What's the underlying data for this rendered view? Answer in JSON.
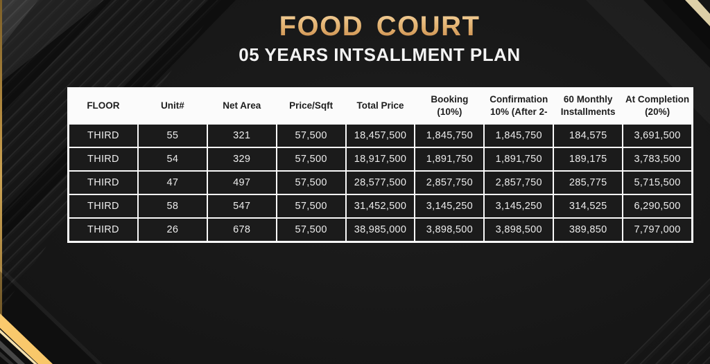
{
  "header": {
    "title": "FOOD COURT",
    "subtitle": "05 YEARS INTSALLMENT PLAN"
  },
  "table": {
    "headers": [
      {
        "lines": [
          "FLOOR"
        ]
      },
      {
        "lines": [
          "Unit#"
        ]
      },
      {
        "lines": [
          "Net Area"
        ]
      },
      {
        "lines": [
          "Price/Sqft"
        ]
      },
      {
        "lines": [
          "Total Price"
        ]
      },
      {
        "lines": [
          "Booking",
          "(10%)"
        ]
      },
      {
        "lines": [
          "Confirmation",
          "10% (After 2-"
        ]
      },
      {
        "lines": [
          "60 Monthly",
          "Installments"
        ]
      },
      {
        "lines": [
          "At Completion",
          "(20%)"
        ]
      }
    ],
    "rows": [
      {
        "cells": [
          "THIRD",
          "55",
          "321",
          "57,500",
          "18,457,500",
          "1,845,750",
          "1,845,750",
          "184,575",
          "3,691,500"
        ]
      },
      {
        "cells": [
          "THIRD",
          "54",
          "329",
          "57,500",
          "18,917,500",
          "1,891,750",
          "1,891,750",
          "189,175",
          "3,783,500"
        ]
      },
      {
        "cells": [
          "THIRD",
          "47",
          "497",
          "57,500",
          "28,577,500",
          "2,857,750",
          "2,857,750",
          "285,775",
          "5,715,500"
        ]
      },
      {
        "cells": [
          "THIRD",
          "58",
          "547",
          "57,500",
          "31,452,500",
          "3,145,250",
          "3,145,250",
          "314,525",
          "6,290,500"
        ]
      },
      {
        "cells": [
          "THIRD",
          "26",
          "678",
          "57,500",
          "38,985,000",
          "3,898,500",
          "3,898,500",
          "389,850",
          "7,797,000"
        ]
      }
    ]
  },
  "colors": {
    "title_gold_light": "#f2cd96",
    "title_gold_dark": "#c9894a",
    "gold_line": "#b98f42",
    "gold_ribbon": "#f7c465",
    "cream_ribbon": "#e8dcb6",
    "background": "#171717",
    "table_cell_bg": "#1b1b1b",
    "table_border": "#fafafa",
    "header_text": "#1d1d1d",
    "cell_text": "#ececec"
  }
}
